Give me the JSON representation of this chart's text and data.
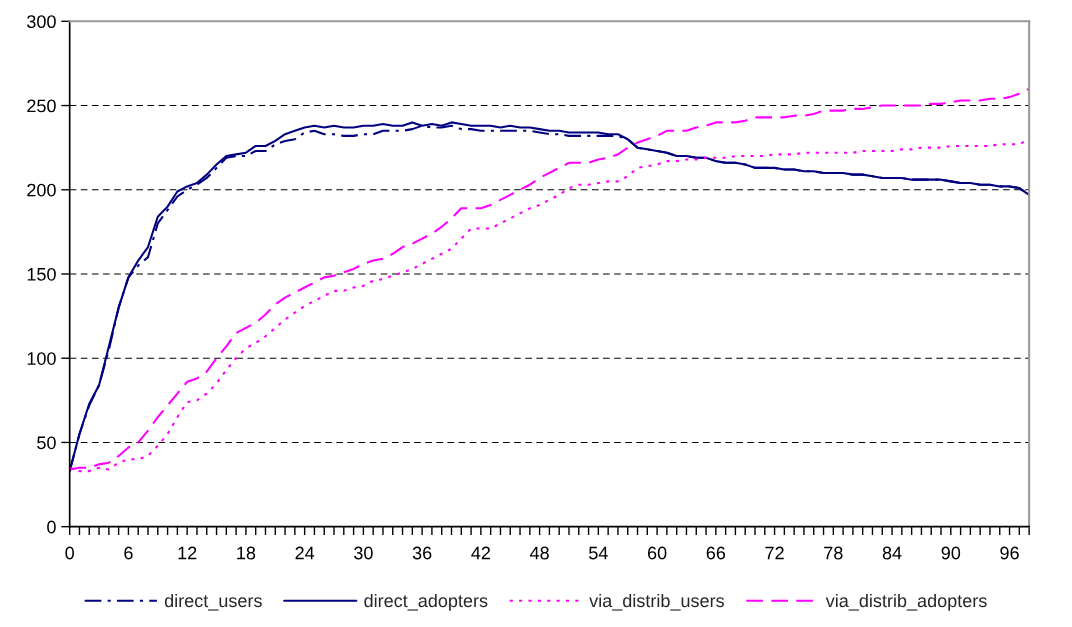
{
  "chart_data": {
    "type": "line",
    "x": [
      0,
      1,
      2,
      3,
      4,
      5,
      6,
      7,
      8,
      9,
      10,
      11,
      12,
      13,
      14,
      15,
      16,
      17,
      18,
      19,
      20,
      21,
      22,
      23,
      24,
      25,
      26,
      27,
      28,
      29,
      30,
      31,
      32,
      33,
      34,
      35,
      36,
      37,
      38,
      39,
      40,
      41,
      42,
      43,
      44,
      45,
      46,
      47,
      48,
      49,
      50,
      51,
      52,
      53,
      54,
      55,
      56,
      57,
      58,
      59,
      60,
      61,
      62,
      63,
      64,
      65,
      66,
      67,
      68,
      69,
      70,
      71,
      72,
      73,
      74,
      75,
      76,
      77,
      78,
      79,
      80,
      81,
      82,
      83,
      84,
      85,
      86,
      87,
      88,
      89,
      90,
      91,
      92,
      93,
      94,
      95,
      96,
      97,
      98
    ],
    "series": [
      {
        "name": "direct_users",
        "color": "#000080",
        "line_style": "dashdot",
        "values": [
          33,
          55,
          72,
          84,
          105,
          130,
          148,
          155,
          160,
          180,
          188,
          196,
          200,
          203,
          207,
          213,
          219,
          220,
          220,
          223,
          223,
          227,
          229,
          230,
          234,
          235,
          233,
          233,
          232,
          232,
          233,
          233,
          235,
          235,
          235,
          236,
          238,
          237,
          237,
          238,
          236,
          236,
          235,
          235,
          235,
          235,
          235,
          235,
          234,
          233,
          233,
          232,
          232,
          232,
          232,
          232,
          232,
          230,
          225,
          224,
          223,
          222,
          220,
          220,
          219,
          219,
          217,
          216,
          216,
          215,
          213,
          213,
          213,
          212,
          212,
          211,
          211,
          210,
          210,
          210,
          209,
          209,
          208,
          207,
          207,
          207,
          206,
          206,
          206,
          206,
          205,
          204,
          204,
          203,
          203,
          202,
          202,
          201,
          197
        ]
      },
      {
        "name": "direct_adopters",
        "color": "#000080",
        "line_style": "solid",
        "values": [
          33,
          55,
          73,
          84,
          107,
          130,
          148,
          158,
          166,
          184,
          190,
          199,
          202,
          204,
          209,
          215,
          220,
          221,
          222,
          226,
          226,
          229,
          233,
          235,
          237,
          238,
          237,
          238,
          237,
          237,
          238,
          238,
          239,
          238,
          238,
          240,
          238,
          239,
          238,
          240,
          239,
          238,
          238,
          238,
          237,
          238,
          237,
          237,
          236,
          235,
          235,
          234,
          234,
          234,
          234,
          233,
          233,
          230,
          225,
          224,
          223,
          222,
          220,
          220,
          219,
          219,
          217,
          216,
          216,
          215,
          213,
          213,
          213,
          212,
          212,
          211,
          211,
          210,
          210,
          210,
          209,
          209,
          208,
          207,
          207,
          207,
          206,
          206,
          206,
          206,
          205,
          204,
          204,
          203,
          203,
          202,
          202,
          201,
          197
        ]
      },
      {
        "name": "via_distrib_users",
        "color": "#ff00ff",
        "line_style": "dotted",
        "values": [
          35,
          33,
          33,
          35,
          34,
          38,
          40,
          40,
          42,
          48,
          55,
          65,
          74,
          75,
          79,
          85,
          93,
          100,
          106,
          109,
          113,
          118,
          123,
          127,
          131,
          134,
          137,
          140,
          140,
          142,
          143,
          146,
          147,
          149,
          151,
          153,
          156,
          159,
          162,
          165,
          171,
          177,
          177,
          177,
          180,
          183,
          186,
          189,
          191,
          194,
          197,
          201,
          203,
          203,
          204,
          205,
          205,
          208,
          213,
          214,
          215,
          217,
          217,
          218,
          218,
          219,
          219,
          219,
          220,
          220,
          220,
          220,
          221,
          221,
          221,
          222,
          222,
          222,
          222,
          222,
          222,
          223,
          223,
          223,
          223,
          224,
          224,
          225,
          225,
          225,
          226,
          226,
          226,
          226,
          226,
          227,
          227,
          227,
          230
        ]
      },
      {
        "name": "via_distrib_adopters",
        "color": "#ff00ff",
        "line_style": "dashed",
        "values": [
          34,
          35,
          35,
          37,
          38,
          42,
          47,
          50,
          57,
          65,
          72,
          79,
          86,
          88,
          92,
          100,
          107,
          115,
          118,
          121,
          126,
          132,
          136,
          139,
          142,
          145,
          148,
          149,
          151,
          153,
          156,
          158,
          159,
          162,
          166,
          168,
          171,
          174,
          178,
          183,
          189,
          189,
          189,
          191,
          194,
          197,
          200,
          203,
          207,
          210,
          213,
          216,
          216,
          216,
          218,
          219,
          221,
          225,
          228,
          230,
          232,
          235,
          235,
          235,
          237,
          238,
          240,
          240,
          240,
          241,
          243,
          243,
          243,
          243,
          244,
          244,
          245,
          247,
          247,
          247,
          248,
          248,
          249,
          250,
          250,
          250,
          250,
          250,
          251,
          251,
          252,
          253,
          253,
          253,
          254,
          254,
          255,
          257,
          260
        ]
      }
    ],
    "xlim": [
      0,
      98
    ],
    "xticks": [
      0,
      {
        "value": 1,
        "label": null
      },
      {
        "value": 2,
        "label": null
      },
      {
        "value": 3,
        "label": null
      },
      {
        "value": 4,
        "label": null
      },
      {
        "value": 5,
        "label": null
      },
      6,
      {
        "value": 7,
        "label": null
      },
      {
        "value": 8,
        "label": null
      },
      {
        "value": 9,
        "label": null
      },
      {
        "value": 10,
        "label": null
      },
      {
        "value": 11,
        "label": null
      },
      12,
      {
        "value": 13,
        "label": null
      },
      {
        "value": 14,
        "label": null
      },
      {
        "value": 15,
        "label": null
      },
      {
        "value": 16,
        "label": null
      },
      {
        "value": 17,
        "label": null
      },
      18,
      {
        "value": 19,
        "label": null
      },
      {
        "value": 20,
        "label": null
      },
      {
        "value": 21,
        "label": null
      },
      {
        "value": 22,
        "label": null
      },
      {
        "value": 23,
        "label": null
      },
      24,
      {
        "value": 25,
        "label": null
      },
      {
        "value": 26,
        "label": null
      },
      {
        "value": 27,
        "label": null
      },
      {
        "value": 28,
        "label": null
      },
      {
        "value": 29,
        "label": null
      },
      30,
      {
        "value": 31,
        "label": null
      },
      {
        "value": 32,
        "label": null
      },
      {
        "value": 33,
        "label": null
      },
      {
        "value": 34,
        "label": null
      },
      {
        "value": 35,
        "label": null
      },
      36,
      {
        "value": 37,
        "label": null
      },
      {
        "value": 38,
        "label": null
      },
      {
        "value": 39,
        "label": null
      },
      {
        "value": 40,
        "label": null
      },
      {
        "value": 41,
        "label": null
      },
      42,
      {
        "value": 43,
        "label": null
      },
      {
        "value": 44,
        "label": null
      },
      {
        "value": 45,
        "label": null
      },
      {
        "value": 46,
        "label": null
      },
      {
        "value": 47,
        "label": null
      },
      48,
      {
        "value": 49,
        "label": null
      },
      {
        "value": 50,
        "label": null
      },
      {
        "value": 51,
        "label": null
      },
      {
        "value": 52,
        "label": null
      },
      {
        "value": 53,
        "label": null
      },
      54,
      {
        "value": 55,
        "label": null
      },
      {
        "value": 56,
        "label": null
      },
      {
        "value": 57,
        "label": null
      },
      {
        "value": 58,
        "label": null
      },
      {
        "value": 59,
        "label": null
      },
      60,
      {
        "value": 61,
        "label": null
      },
      {
        "value": 62,
        "label": null
      },
      {
        "value": 63,
        "label": null
      },
      {
        "value": 64,
        "label": null
      },
      {
        "value": 65,
        "label": null
      },
      66,
      {
        "value": 67,
        "label": null
      },
      {
        "value": 68,
        "label": null
      },
      {
        "value": 69,
        "label": null
      },
      {
        "value": 70,
        "label": null
      },
      {
        "value": 71,
        "label": null
      },
      72,
      {
        "value": 73,
        "label": null
      },
      {
        "value": 74,
        "label": null
      },
      {
        "value": 75,
        "label": null
      },
      {
        "value": 76,
        "label": null
      },
      {
        "value": 77,
        "label": null
      },
      78,
      {
        "value": 79,
        "label": null
      },
      {
        "value": 80,
        "label": null
      },
      {
        "value": 81,
        "label": null
      },
      {
        "value": 82,
        "label": null
      },
      {
        "value": 83,
        "label": null
      },
      84,
      {
        "value": 85,
        "label": null
      },
      {
        "value": 86,
        "label": null
      },
      {
        "value": 87,
        "label": null
      },
      {
        "value": 88,
        "label": null
      },
      {
        "value": 89,
        "label": null
      },
      90,
      {
        "value": 91,
        "label": null
      },
      {
        "value": 92,
        "label": null
      },
      {
        "value": 93,
        "label": null
      },
      {
        "value": 94,
        "label": null
      },
      {
        "value": 95,
        "label": null
      },
      96,
      {
        "value": 97,
        "label": null
      },
      {
        "value": 98,
        "label": null
      }
    ],
    "ylim": [
      0,
      300
    ],
    "yticks": [
      0,
      50,
      100,
      150,
      200,
      250,
      300
    ],
    "grid": "y",
    "legend": "bottom"
  }
}
